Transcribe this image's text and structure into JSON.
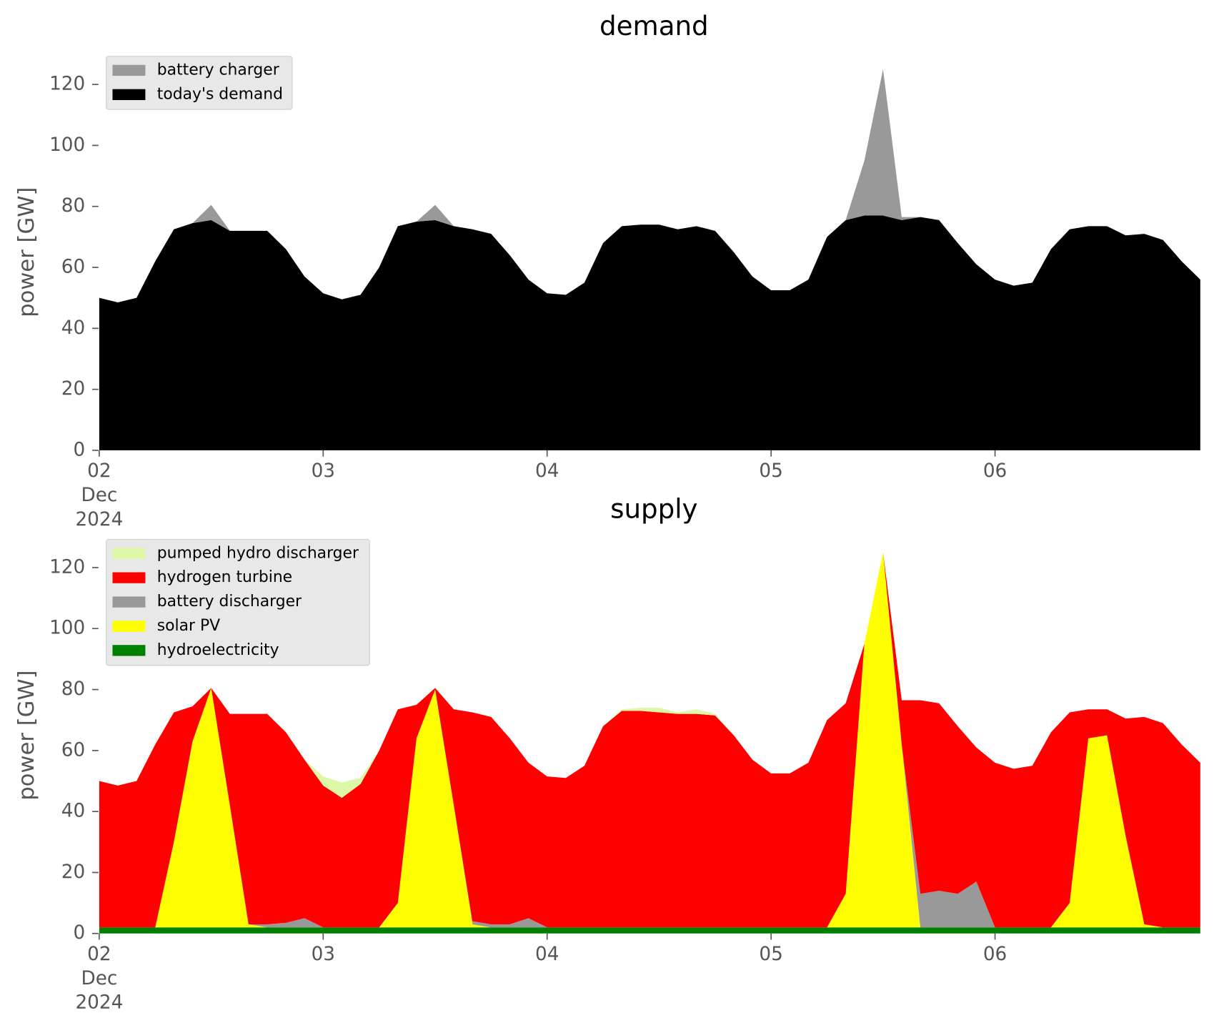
{
  "chart_data": [
    {
      "type": "stacked_area",
      "title": "demand",
      "ylabel": "power [GW]",
      "x": [
        "2024-12-02T00:00",
        "2024-12-02T02:00",
        "2024-12-02T04:00",
        "2024-12-02T06:00",
        "2024-12-02T08:00",
        "2024-12-02T10:00",
        "2024-12-02T12:00",
        "2024-12-02T14:00",
        "2024-12-02T16:00",
        "2024-12-02T18:00",
        "2024-12-02T20:00",
        "2024-12-02T22:00",
        "2024-12-03T00:00",
        "2024-12-03T02:00",
        "2024-12-03T04:00",
        "2024-12-03T06:00",
        "2024-12-03T08:00",
        "2024-12-03T10:00",
        "2024-12-03T12:00",
        "2024-12-03T14:00",
        "2024-12-03T16:00",
        "2024-12-03T18:00",
        "2024-12-03T20:00",
        "2024-12-03T22:00",
        "2024-12-04T00:00",
        "2024-12-04T02:00",
        "2024-12-04T04:00",
        "2024-12-04T06:00",
        "2024-12-04T08:00",
        "2024-12-04T10:00",
        "2024-12-04T12:00",
        "2024-12-04T14:00",
        "2024-12-04T16:00",
        "2024-12-04T18:00",
        "2024-12-04T20:00",
        "2024-12-04T22:00",
        "2024-12-05T00:00",
        "2024-12-05T02:00",
        "2024-12-05T04:00",
        "2024-12-05T06:00",
        "2024-12-05T08:00",
        "2024-12-05T10:00",
        "2024-12-05T12:00",
        "2024-12-05T14:00",
        "2024-12-05T16:00",
        "2024-12-05T18:00",
        "2024-12-05T20:00",
        "2024-12-05T22:00",
        "2024-12-06T00:00",
        "2024-12-06T02:00",
        "2024-12-06T04:00",
        "2024-12-06T06:00",
        "2024-12-06T08:00",
        "2024-12-06T10:00",
        "2024-12-06T12:00",
        "2024-12-06T14:00",
        "2024-12-06T16:00",
        "2024-12-06T18:00",
        "2024-12-06T20:00",
        "2024-12-06T22:00"
      ],
      "series": [
        {
          "name": "today's demand",
          "color": "#000000",
          "values": [
            50,
            48.5,
            50,
            62,
            72.5,
            74.5,
            75.5,
            72,
            72,
            72,
            66,
            57,
            51.5,
            49.5,
            51,
            60,
            73.5,
            75,
            75.5,
            73.5,
            72.5,
            71,
            64,
            56,
            51.5,
            51,
            55,
            68,
            73.5,
            74,
            74,
            72.5,
            73.5,
            72,
            65,
            57,
            52.5,
            52.5,
            56,
            70,
            75.5,
            77,
            77,
            75.5,
            76.5,
            75.5,
            68,
            61,
            56,
            54,
            55,
            66,
            72.5,
            73.5,
            73.5,
            70.5,
            71,
            69,
            62,
            56
          ]
        },
        {
          "name": "battery charger",
          "color": "#999999",
          "values": [
            0,
            0,
            0,
            0,
            0,
            0,
            5,
            0,
            0,
            0,
            0,
            0,
            0,
            0,
            0,
            0,
            0,
            0,
            5,
            0,
            0,
            0,
            0,
            0,
            0,
            0,
            0,
            0,
            0,
            0,
            0,
            0,
            0,
            0,
            0,
            0,
            0,
            0,
            0,
            0,
            0,
            18,
            48,
            1,
            0,
            0,
            0,
            0,
            0,
            0,
            0,
            0,
            0,
            0,
            0,
            0,
            0,
            0,
            0,
            0
          ]
        }
      ],
      "xlim": [
        "2024-12-02T00:00",
        "2024-12-06T23:00"
      ],
      "xticks": [
        {
          "value": "2024-12-02T00:00",
          "label": "02\nDec\n2024"
        },
        {
          "value": "2024-12-03T00:00",
          "label": "03"
        },
        {
          "value": "2024-12-04T00:00",
          "label": "04"
        },
        {
          "value": "2024-12-05T00:00",
          "label": "05"
        },
        {
          "value": "2024-12-06T00:00",
          "label": "06"
        }
      ],
      "ylim": [
        0,
        130
      ],
      "yticks": [
        0,
        20,
        40,
        60,
        80,
        100,
        120
      ],
      "legend": "upper left"
    },
    {
      "type": "stacked_area",
      "title": "supply",
      "ylabel": "power [GW]",
      "x": [
        "2024-12-02T00:00",
        "2024-12-02T02:00",
        "2024-12-02T04:00",
        "2024-12-02T06:00",
        "2024-12-02T08:00",
        "2024-12-02T10:00",
        "2024-12-02T12:00",
        "2024-12-02T14:00",
        "2024-12-02T16:00",
        "2024-12-02T18:00",
        "2024-12-02T20:00",
        "2024-12-02T22:00",
        "2024-12-03T00:00",
        "2024-12-03T02:00",
        "2024-12-03T04:00",
        "2024-12-03T06:00",
        "2024-12-03T08:00",
        "2024-12-03T10:00",
        "2024-12-03T12:00",
        "2024-12-03T14:00",
        "2024-12-03T16:00",
        "2024-12-03T18:00",
        "2024-12-03T20:00",
        "2024-12-03T22:00",
        "2024-12-04T00:00",
        "2024-12-04T02:00",
        "2024-12-04T04:00",
        "2024-12-04T06:00",
        "2024-12-04T08:00",
        "2024-12-04T10:00",
        "2024-12-04T12:00",
        "2024-12-04T14:00",
        "2024-12-04T16:00",
        "2024-12-04T18:00",
        "2024-12-04T20:00",
        "2024-12-04T22:00",
        "2024-12-05T00:00",
        "2024-12-05T02:00",
        "2024-12-05T04:00",
        "2024-12-05T06:00",
        "2024-12-05T08:00",
        "2024-12-05T10:00",
        "2024-12-05T12:00",
        "2024-12-05T14:00",
        "2024-12-05T16:00",
        "2024-12-05T18:00",
        "2024-12-05T20:00",
        "2024-12-05T22:00",
        "2024-12-06T00:00",
        "2024-12-06T02:00",
        "2024-12-06T04:00",
        "2024-12-06T06:00",
        "2024-12-06T08:00",
        "2024-12-06T10:00",
        "2024-12-06T12:00",
        "2024-12-06T14:00",
        "2024-12-06T16:00",
        "2024-12-06T18:00",
        "2024-12-06T20:00",
        "2024-12-06T22:00"
      ],
      "series": [
        {
          "name": "hydroelectricity",
          "color": "#008000",
          "values": [
            2,
            2,
            2,
            2,
            2,
            2,
            2,
            2,
            2,
            2,
            2,
            2,
            2,
            2,
            2,
            2,
            2,
            2,
            2,
            2,
            2,
            2,
            2,
            2,
            2,
            2,
            2,
            2,
            2,
            2,
            2,
            2,
            2,
            2,
            2,
            2,
            2,
            2,
            2,
            2,
            2,
            2,
            2,
            2,
            2,
            2,
            2,
            2,
            2,
            2,
            2,
            2,
            2,
            2,
            2,
            2,
            2,
            2,
            2,
            2
          ]
        },
        {
          "name": "solar PV",
          "color": "#ffff00",
          "values": [
            0,
            0,
            0,
            0,
            28,
            61,
            78.5,
            40,
            1,
            0,
            0,
            0,
            0,
            0,
            0,
            0,
            8,
            62,
            78,
            40,
            1,
            0,
            0,
            0,
            0,
            0,
            0,
            0,
            0,
            0,
            0,
            0,
            0,
            0,
            0,
            0,
            0,
            0,
            0,
            0,
            11,
            93,
            123,
            60,
            0,
            0,
            0,
            0,
            0,
            0,
            0,
            0,
            8,
            62,
            63,
            30,
            1,
            0,
            0,
            0
          ]
        },
        {
          "name": "battery discharger",
          "color": "#999999",
          "values": [
            0,
            0,
            0,
            0,
            0,
            0,
            0,
            0,
            0,
            1,
            1.5,
            3,
            0,
            0,
            0,
            0,
            0,
            0,
            0,
            0,
            1,
            1,
            1,
            3,
            0,
            0,
            0,
            0,
            0,
            0,
            0,
            0,
            0,
            0,
            0,
            0,
            0,
            0,
            0,
            0,
            0,
            0,
            0,
            0,
            11,
            12,
            11,
            15,
            0,
            0,
            0,
            0,
            0,
            0,
            0,
            0,
            0,
            0,
            0,
            0
          ]
        },
        {
          "name": "hydrogen turbine",
          "color": "#ff0000",
          "values": [
            48,
            46.5,
            48,
            60,
            42.5,
            11.5,
            0,
            30,
            69,
            69,
            62.5,
            52,
            46.5,
            42.5,
            47,
            58,
            63.5,
            11,
            0.5,
            31.5,
            68.5,
            68,
            61,
            51,
            49.5,
            49,
            53,
            66,
            71,
            71,
            70.5,
            70,
            70,
            69.5,
            63,
            55,
            50.5,
            50.5,
            54,
            68,
            62.5,
            0,
            0,
            14.5,
            63.5,
            61.5,
            55,
            44,
            54,
            52,
            53,
            64,
            62.5,
            9.5,
            8.5,
            38.5,
            68,
            67,
            60,
            54
          ]
        },
        {
          "name": "pumped hydro discharger",
          "color": "#dcf7a6",
          "values": [
            0,
            0,
            0,
            0,
            0,
            0,
            0,
            0,
            0,
            0,
            0,
            0,
            3,
            5,
            2,
            0,
            0,
            0,
            0,
            0,
            0,
            0,
            0,
            0,
            0,
            0,
            0,
            0,
            0.5,
            1,
            1.5,
            0.5,
            1.5,
            0.5,
            0,
            0,
            0,
            0,
            0,
            0,
            0,
            0,
            0,
            0,
            0,
            0,
            0,
            0,
            0,
            0,
            0,
            0,
            0,
            0,
            0,
            0,
            0,
            0,
            0,
            0
          ]
        }
      ],
      "xlim": [
        "2024-12-02T00:00",
        "2024-12-06T23:00"
      ],
      "xticks": [
        {
          "value": "2024-12-02T00:00",
          "label": "02\nDec\n2024"
        },
        {
          "value": "2024-12-03T00:00",
          "label": "03"
        },
        {
          "value": "2024-12-04T00:00",
          "label": "04"
        },
        {
          "value": "2024-12-05T00:00",
          "label": "05"
        },
        {
          "value": "2024-12-06T00:00",
          "label": "06"
        }
      ],
      "ylim": [
        0,
        130
      ],
      "yticks": [
        0,
        20,
        40,
        60,
        80,
        100,
        120
      ],
      "legend": "upper left"
    }
  ]
}
